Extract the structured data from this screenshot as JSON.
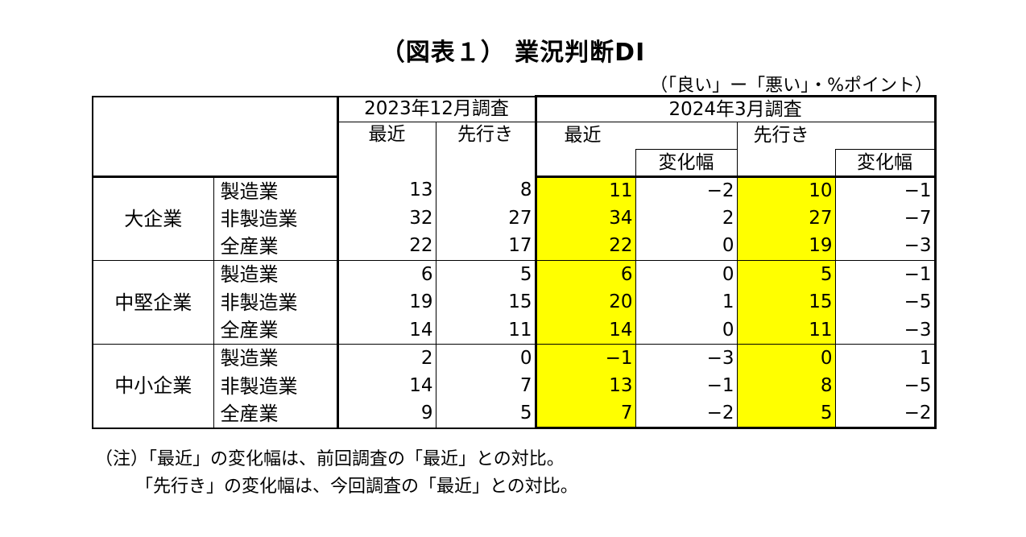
{
  "title": "（図表１） 業況判断DI",
  "unit_note": "（「良い」ー「悪い」・%ポイント）",
  "chart_data": {
    "type": "table",
    "header": {
      "survey_dec": "2023年12月調査",
      "survey_mar": "2024年3月調査",
      "recent": "最近",
      "forward": "先行き",
      "change": "変化幅"
    },
    "groups": [
      {
        "name": "大企業",
        "rows": [
          {
            "industry": "製造業",
            "dec_recent": "13",
            "dec_forward": "8",
            "mar_recent": "11",
            "mar_recent_change": "−2",
            "mar_forward": "10",
            "mar_forward_change": "−1"
          },
          {
            "industry": "非製造業",
            "dec_recent": "32",
            "dec_forward": "27",
            "mar_recent": "34",
            "mar_recent_change": "2",
            "mar_forward": "27",
            "mar_forward_change": "−7"
          },
          {
            "industry": "全産業",
            "dec_recent": "22",
            "dec_forward": "17",
            "mar_recent": "22",
            "mar_recent_change": "0",
            "mar_forward": "19",
            "mar_forward_change": "−3"
          }
        ]
      },
      {
        "name": "中堅企業",
        "rows": [
          {
            "industry": "製造業",
            "dec_recent": "6",
            "dec_forward": "5",
            "mar_recent": "6",
            "mar_recent_change": "0",
            "mar_forward": "5",
            "mar_forward_change": "−1"
          },
          {
            "industry": "非製造業",
            "dec_recent": "19",
            "dec_forward": "15",
            "mar_recent": "20",
            "mar_recent_change": "1",
            "mar_forward": "15",
            "mar_forward_change": "−5"
          },
          {
            "industry": "全産業",
            "dec_recent": "14",
            "dec_forward": "11",
            "mar_recent": "14",
            "mar_recent_change": "0",
            "mar_forward": "11",
            "mar_forward_change": "−3"
          }
        ]
      },
      {
        "name": "中小企業",
        "rows": [
          {
            "industry": "製造業",
            "dec_recent": "2",
            "dec_forward": "0",
            "mar_recent": "−1",
            "mar_recent_change": "−3",
            "mar_forward": "0",
            "mar_forward_change": "1"
          },
          {
            "industry": "非製造業",
            "dec_recent": "14",
            "dec_forward": "7",
            "mar_recent": "13",
            "mar_recent_change": "−1",
            "mar_forward": "8",
            "mar_forward_change": "−5"
          },
          {
            "industry": "全産業",
            "dec_recent": "9",
            "dec_forward": "5",
            "mar_recent": "7",
            "mar_recent_change": "−2",
            "mar_forward": "5",
            "mar_forward_change": "−2"
          }
        ]
      }
    ],
    "highlight_color": "#ffff00"
  },
  "notes": [
    "（注）「最近」の変化幅は、前回調査の「最近」との対比。",
    "「先行き」の変化幅は、今回調査の「最近」との対比。"
  ]
}
